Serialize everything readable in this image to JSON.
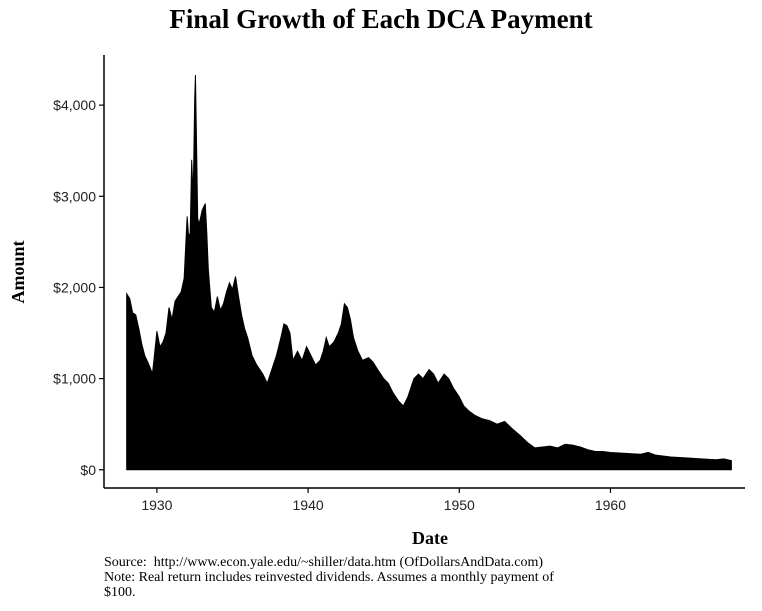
{
  "chart_data": {
    "type": "area",
    "title": "Final Growth of Each DCA Payment",
    "xlabel": "Date",
    "ylabel": "Amount",
    "xlim": [
      1926.5,
      1968.9
    ],
    "ylim": [
      -200,
      4550
    ],
    "x_ticks": [
      1930,
      1940,
      1950,
      1960
    ],
    "x_tick_labels": [
      "1930",
      "1940",
      "1950",
      "1960"
    ],
    "y_ticks": [
      0,
      1000,
      2000,
      3000,
      4000
    ],
    "y_tick_labels": [
      "$0",
      "$1,000",
      "$2,000",
      "$3,000",
      "$4,000"
    ],
    "grid": false,
    "legend": "none",
    "fill_color": "#000000",
    "series": [
      {
        "x": [
          1928.0,
          1928.2,
          1928.4,
          1928.6,
          1928.8,
          1929.0,
          1929.2,
          1929.4,
          1929.6,
          1929.7,
          1929.8,
          1930.0,
          1930.2,
          1930.4,
          1930.6,
          1930.8,
          1931.0,
          1931.2,
          1931.4,
          1931.6,
          1931.8,
          1932.0,
          1932.1,
          1932.2,
          1932.3,
          1932.4,
          1932.5,
          1932.55,
          1932.6,
          1932.7,
          1932.8,
          1933.0,
          1933.2,
          1933.3,
          1933.4,
          1933.6,
          1933.8,
          1934.0,
          1934.2,
          1934.4,
          1934.6,
          1934.8,
          1935.0,
          1935.2,
          1935.4,
          1935.6,
          1935.8,
          1936.0,
          1936.3,
          1936.6,
          1937.0,
          1937.3,
          1937.6,
          1937.9,
          1938.2,
          1938.4,
          1938.6,
          1938.8,
          1939.0,
          1939.3,
          1939.6,
          1939.9,
          1940.2,
          1940.5,
          1940.8,
          1941.0,
          1941.2,
          1941.4,
          1941.7,
          1942.0,
          1942.2,
          1942.4,
          1942.6,
          1942.8,
          1943.0,
          1943.3,
          1943.6,
          1944.0,
          1944.3,
          1944.6,
          1945.0,
          1945.3,
          1945.6,
          1946.0,
          1946.3,
          1946.6,
          1947.0,
          1947.3,
          1947.6,
          1948.0,
          1948.3,
          1948.6,
          1949.0,
          1949.3,
          1949.6,
          1950.0,
          1950.3,
          1950.6,
          1951.0,
          1951.5,
          1952.0,
          1952.5,
          1953.0,
          1953.5,
          1954.0,
          1954.5,
          1955.0,
          1955.5,
          1956.0,
          1956.5,
          1957.0,
          1957.5,
          1958.0,
          1958.5,
          1959.0,
          1959.5,
          1960.0,
          1961.0,
          1962.0,
          1962.5,
          1963.0,
          1964.0,
          1965.0,
          1966.0,
          1967.0,
          1967.5,
          1968.0
        ],
        "values": [
          1930,
          1880,
          1720,
          1700,
          1550,
          1380,
          1250,
          1180,
          1100,
          1050,
          1200,
          1520,
          1350,
          1400,
          1500,
          1780,
          1650,
          1850,
          1900,
          1950,
          2100,
          2780,
          2550,
          2600,
          3400,
          3000,
          4080,
          4330,
          3800,
          2750,
          2700,
          2850,
          2920,
          2600,
          2200,
          1780,
          1730,
          1900,
          1750,
          1820,
          1950,
          2050,
          1980,
          2120,
          1900,
          1700,
          1550,
          1450,
          1250,
          1150,
          1050,
          950,
          1100,
          1250,
          1450,
          1600,
          1580,
          1500,
          1200,
          1300,
          1200,
          1350,
          1250,
          1150,
          1200,
          1300,
          1450,
          1350,
          1400,
          1500,
          1600,
          1820,
          1780,
          1650,
          1450,
          1300,
          1200,
          1230,
          1180,
          1100,
          1000,
          950,
          850,
          750,
          700,
          800,
          1000,
          1050,
          1000,
          1100,
          1050,
          950,
          1050,
          1000,
          900,
          800,
          700,
          650,
          600,
          560,
          540,
          500,
          530,
          450,
          380,
          300,
          240,
          250,
          260,
          240,
          280,
          270,
          250,
          220,
          200,
          200,
          190,
          180,
          170,
          190,
          160,
          140,
          130,
          120,
          110,
          120,
          100
        ]
      }
    ]
  },
  "caption": {
    "source": "Source:  http://www.econ.yale.edu/~shiller/data.htm (OfDollarsAndData.com)",
    "note": "Note: Real return includes reinvested dividends. Assumes a monthly payment of\n$100."
  }
}
